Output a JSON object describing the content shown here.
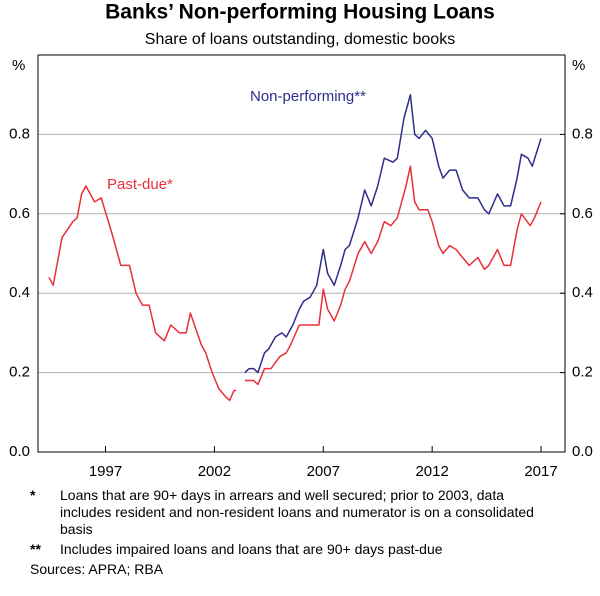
{
  "chart_data": {
    "type": "line",
    "title": "Banks’ Non-performing Housing Loans",
    "subtitle": "Share of loans outstanding, domestic books",
    "y_unit": "%",
    "y2_unit": "%",
    "xlim": [
      1993.9,
      2018.1
    ],
    "xticks": [
      1997,
      2002,
      2007,
      2012,
      2017
    ],
    "ylim": [
      0,
      1.0
    ],
    "yticks": [
      {
        "value": 0,
        "label": "0.0"
      },
      0.2,
      0.4,
      0.6,
      0.8
    ],
    "y2lim": [
      0,
      1.0
    ],
    "y2ticks": [
      {
        "value": 0,
        "label": "0.0"
      },
      0.2,
      0.4,
      0.6,
      0.8
    ],
    "grid": true,
    "series": [
      {
        "name": "Non-performing**",
        "color": "#2e2e8c",
        "x": [
          2003.4,
          2003.6,
          2003.8,
          2004.0,
          2004.3,
          2004.5,
          2004.8,
          2005.1,
          2005.3,
          2005.6,
          2005.9,
          2006.1,
          2006.4,
          2006.7,
          2007.0,
          2007.2,
          2007.5,
          2007.8,
          2008.0,
          2008.2,
          2008.6,
          2008.9,
          2009.2,
          2009.5,
          2009.8,
          2010.2,
          2010.4,
          2010.7,
          2011.0,
          2011.2,
          2011.4,
          2011.7,
          2012.0,
          2012.3,
          2012.5,
          2012.8,
          2013.1,
          2013.4,
          2013.7,
          2014.1,
          2014.4,
          2014.6,
          2015.0,
          2015.3,
          2015.6,
          2015.9,
          2016.1,
          2016.4,
          2016.6,
          2017.0
        ],
        "values": [
          0.2,
          0.21,
          0.21,
          0.2,
          0.25,
          0.26,
          0.29,
          0.3,
          0.29,
          0.32,
          0.36,
          0.38,
          0.39,
          0.42,
          0.51,
          0.45,
          0.42,
          0.47,
          0.51,
          0.52,
          0.59,
          0.66,
          0.62,
          0.67,
          0.74,
          0.73,
          0.74,
          0.84,
          0.9,
          0.8,
          0.79,
          0.81,
          0.79,
          0.72,
          0.69,
          0.71,
          0.71,
          0.66,
          0.64,
          0.64,
          0.61,
          0.6,
          0.65,
          0.62,
          0.62,
          0.69,
          0.75,
          0.74,
          0.72,
          0.79
        ]
      },
      {
        "name": "Past-due*",
        "color": "#e8303a",
        "x": [
          1994.4,
          1994.6,
          1995.0,
          1995.5,
          1995.7,
          1995.9,
          1996.1,
          1996.5,
          1996.8,
          1997.3,
          1997.7,
          1998.1,
          1998.4,
          1998.7,
          1999.0,
          1999.3,
          1999.7,
          2000.0,
          2000.4,
          2000.7,
          2000.9,
          2001.4,
          2001.6,
          2001.9,
          2002.2,
          2002.5,
          2002.7,
          2002.9,
          2003.0,
          2003.2,
          2003.4,
          2003.8,
          2004.0,
          2004.3,
          2004.6,
          2005.0,
          2005.3,
          2005.5,
          2005.9,
          2006.4,
          2006.8,
          2007.0,
          2007.2,
          2007.5,
          2007.8,
          2008.0,
          2008.2,
          2008.6,
          2008.9,
          2009.2,
          2009.5,
          2009.8,
          2010.1,
          2010.4,
          2010.8,
          2011.0,
          2011.2,
          2011.4,
          2011.8,
          2012.0,
          2012.3,
          2012.5,
          2012.8,
          2013.1,
          2013.4,
          2013.7,
          2014.1,
          2014.4,
          2014.6,
          2015.0,
          2015.3,
          2015.6,
          2015.9,
          2016.1,
          2016.5,
          2016.7,
          2017.0
        ],
        "values": [
          0.44,
          0.42,
          0.54,
          0.58,
          0.59,
          0.65,
          0.67,
          0.63,
          0.64,
          0.55,
          0.47,
          0.47,
          0.4,
          0.37,
          0.37,
          0.3,
          0.28,
          0.32,
          0.3,
          0.3,
          0.35,
          0.27,
          0.25,
          0.2,
          0.16,
          0.14,
          0.13,
          0.155,
          0.155,
          null,
          0.18,
          0.18,
          0.17,
          0.21,
          0.21,
          0.24,
          0.25,
          0.27,
          0.32,
          0.32,
          0.32,
          0.41,
          0.36,
          0.33,
          0.37,
          0.41,
          0.43,
          0.5,
          0.53,
          0.5,
          0.53,
          0.58,
          0.57,
          0.59,
          0.67,
          0.72,
          0.63,
          0.61,
          0.61,
          0.58,
          0.52,
          0.5,
          0.52,
          0.51,
          0.49,
          0.47,
          0.49,
          0.46,
          0.47,
          0.51,
          0.47,
          0.47,
          0.56,
          0.6,
          0.57,
          0.59,
          0.63
        ]
      }
    ],
    "notes": [
      {
        "marker": "*",
        "text": "Loans that are 90+ days in arrears and well secured; prior to 2003, data includes resident and non-resident loans and numerator is on a consolidated basis"
      },
      {
        "marker": "**",
        "text": "Includes impaired loans and loans that are 90+ days past-due"
      }
    ],
    "source": "Sources: APRA; RBA"
  }
}
